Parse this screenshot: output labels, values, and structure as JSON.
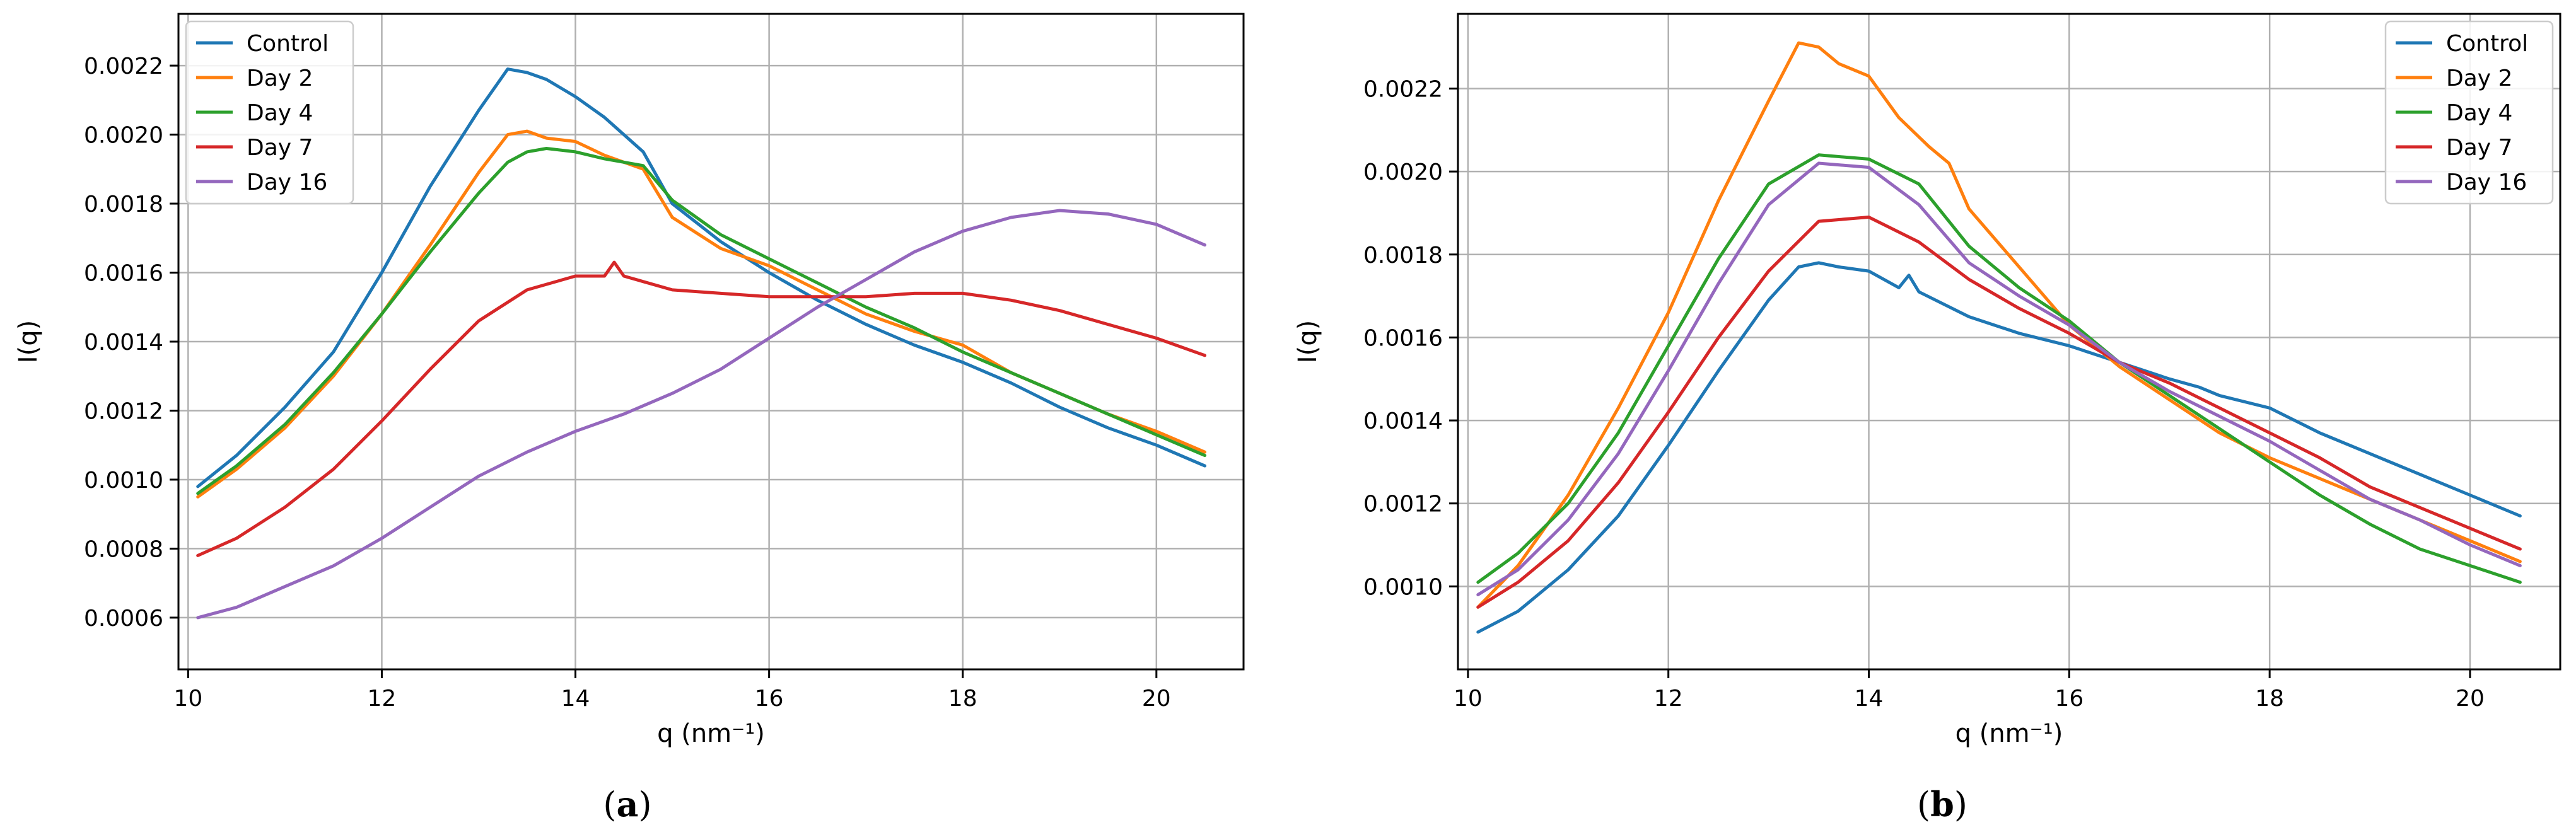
{
  "figure": {
    "panels": [
      {
        "caption_open": "(",
        "caption_letter": "a",
        "caption_close": ")"
      },
      {
        "caption_open": "(",
        "caption_letter": "b",
        "caption_close": ")"
      }
    ]
  },
  "chart_data": [
    {
      "type": "line",
      "xlabel": "q (nm⁻¹)",
      "ylabel": "I(q)",
      "xlim": [
        9.9,
        20.9
      ],
      "ylim": [
        0.00045,
        0.00235
      ],
      "xticks": [
        10,
        12,
        14,
        16,
        18,
        20
      ],
      "xtick_labels": [
        "10",
        "12",
        "14",
        "16",
        "18",
        "20"
      ],
      "yticks": [
        0.0006,
        0.0008,
        0.001,
        0.0012,
        0.0014,
        0.0016,
        0.0018,
        0.002,
        0.0022
      ],
      "ytick_labels": [
        "0.0006",
        "0.0008",
        "0.0010",
        "0.0012",
        "0.0014",
        "0.0016",
        "0.0018",
        "0.0020",
        "0.0022"
      ],
      "grid": true,
      "legend_position": "upper left",
      "series": [
        {
          "name": "Control",
          "color": "#1f77b4",
          "x": [
            10.1,
            10.5,
            11.0,
            11.5,
            12.0,
            12.5,
            13.0,
            13.3,
            13.5,
            13.7,
            14.0,
            14.3,
            14.7,
            15.0,
            15.5,
            16.0,
            16.5,
            17.0,
            17.5,
            18.0,
            18.5,
            19.0,
            19.5,
            20.0,
            20.5
          ],
          "y": [
            0.00098,
            0.00107,
            0.00121,
            0.00137,
            0.0016,
            0.00185,
            0.00207,
            0.00219,
            0.00218,
            0.00216,
            0.00211,
            0.00205,
            0.00195,
            0.0018,
            0.00169,
            0.0016,
            0.00152,
            0.00145,
            0.00139,
            0.00134,
            0.00128,
            0.00121,
            0.00115,
            0.0011,
            0.00104
          ]
        },
        {
          "name": "Day 2",
          "color": "#ff7f0e",
          "x": [
            10.1,
            10.5,
            11.0,
            11.5,
            12.0,
            12.5,
            13.0,
            13.3,
            13.5,
            13.7,
            14.0,
            14.3,
            14.7,
            15.0,
            15.5,
            16.0,
            16.5,
            17.0,
            17.5,
            18.0,
            18.5,
            19.0,
            19.5,
            20.0,
            20.5
          ],
          "y": [
            0.00095,
            0.00103,
            0.00115,
            0.0013,
            0.00148,
            0.00168,
            0.00189,
            0.002,
            0.00201,
            0.00199,
            0.00198,
            0.00194,
            0.0019,
            0.00176,
            0.00167,
            0.00162,
            0.00155,
            0.00148,
            0.00143,
            0.00139,
            0.00131,
            0.00125,
            0.00119,
            0.00114,
            0.00108
          ]
        },
        {
          "name": "Day 4",
          "color": "#2ca02c",
          "x": [
            10.1,
            10.5,
            11.0,
            11.5,
            12.0,
            12.5,
            13.0,
            13.3,
            13.5,
            13.7,
            14.0,
            14.3,
            14.7,
            15.0,
            15.5,
            16.0,
            16.5,
            17.0,
            17.5,
            18.0,
            18.5,
            19.0,
            19.5,
            20.0,
            20.5
          ],
          "y": [
            0.00096,
            0.00104,
            0.00116,
            0.00131,
            0.00148,
            0.00166,
            0.00183,
            0.00192,
            0.00195,
            0.00196,
            0.00195,
            0.00193,
            0.00191,
            0.00181,
            0.00171,
            0.00164,
            0.00157,
            0.0015,
            0.00144,
            0.00137,
            0.00131,
            0.00125,
            0.00119,
            0.00113,
            0.00107
          ]
        },
        {
          "name": "Day 7",
          "color": "#d62728",
          "x": [
            10.1,
            10.5,
            11.0,
            11.5,
            12.0,
            12.5,
            13.0,
            13.5,
            14.0,
            14.3,
            14.4,
            14.5,
            15.0,
            15.5,
            16.0,
            16.5,
            17.0,
            17.5,
            18.0,
            18.5,
            19.0,
            19.5,
            20.0,
            20.5
          ],
          "y": [
            0.00078,
            0.00083,
            0.00092,
            0.00103,
            0.00117,
            0.00132,
            0.00146,
            0.00155,
            0.00159,
            0.00159,
            0.00163,
            0.00159,
            0.00155,
            0.00154,
            0.00153,
            0.00153,
            0.00153,
            0.00154,
            0.00154,
            0.00152,
            0.00149,
            0.00145,
            0.00141,
            0.00136
          ]
        },
        {
          "name": "Day 16",
          "color": "#9467bd",
          "x": [
            10.1,
            10.5,
            11.0,
            11.5,
            12.0,
            12.5,
            13.0,
            13.5,
            14.0,
            14.5,
            15.0,
            15.5,
            16.0,
            16.5,
            17.0,
            17.5,
            18.0,
            18.5,
            19.0,
            19.5,
            20.0,
            20.5
          ],
          "y": [
            0.0006,
            0.00063,
            0.00069,
            0.00075,
            0.00083,
            0.00092,
            0.00101,
            0.00108,
            0.00114,
            0.00119,
            0.00125,
            0.00132,
            0.00141,
            0.0015,
            0.00158,
            0.00166,
            0.00172,
            0.00176,
            0.00178,
            0.00177,
            0.00174,
            0.00168
          ]
        }
      ]
    },
    {
      "type": "line",
      "xlabel": "q (nm⁻¹)",
      "ylabel": "I(q)",
      "xlim": [
        9.9,
        20.9
      ],
      "ylim": [
        0.0008,
        0.00238
      ],
      "xticks": [
        10,
        12,
        14,
        16,
        18,
        20
      ],
      "xtick_labels": [
        "10",
        "12",
        "14",
        "16",
        "18",
        "20"
      ],
      "yticks": [
        0.001,
        0.0012,
        0.0014,
        0.0016,
        0.0018,
        0.002,
        0.0022
      ],
      "ytick_labels": [
        "0.0010",
        "0.0012",
        "0.0014",
        "0.0016",
        "0.0018",
        "0.0020",
        "0.0022"
      ],
      "grid": true,
      "legend_position": "upper right",
      "series": [
        {
          "name": "Control",
          "color": "#1f77b4",
          "x": [
            10.1,
            10.5,
            11.0,
            11.5,
            12.0,
            12.5,
            13.0,
            13.3,
            13.5,
            13.7,
            14.0,
            14.3,
            14.4,
            14.5,
            15.0,
            15.5,
            16.0,
            16.5,
            17.0,
            17.3,
            17.5,
            18.0,
            18.5,
            19.0,
            19.5,
            20.0,
            20.5
          ],
          "y": [
            0.00089,
            0.00094,
            0.00104,
            0.00117,
            0.00134,
            0.00152,
            0.00169,
            0.00177,
            0.00178,
            0.00177,
            0.00176,
            0.00172,
            0.00175,
            0.00171,
            0.00165,
            0.00161,
            0.00158,
            0.00154,
            0.0015,
            0.00148,
            0.00146,
            0.00143,
            0.00137,
            0.00132,
            0.00127,
            0.00122,
            0.00117
          ]
        },
        {
          "name": "Day 2",
          "color": "#ff7f0e",
          "x": [
            10.1,
            10.5,
            11.0,
            11.5,
            12.0,
            12.5,
            13.0,
            13.3,
            13.5,
            13.7,
            14.0,
            14.3,
            14.6,
            14.8,
            15.0,
            15.5,
            16.0,
            16.5,
            17.0,
            17.5,
            18.0,
            18.5,
            19.0,
            19.5,
            20.0,
            20.5
          ],
          "y": [
            0.00095,
            0.00105,
            0.00122,
            0.00143,
            0.00166,
            0.00193,
            0.00217,
            0.00231,
            0.0023,
            0.00226,
            0.00223,
            0.00213,
            0.00206,
            0.00202,
            0.00191,
            0.00177,
            0.00163,
            0.00153,
            0.00145,
            0.00137,
            0.00131,
            0.00126,
            0.00121,
            0.00116,
            0.00111,
            0.00106
          ]
        },
        {
          "name": "Day 4",
          "color": "#2ca02c",
          "x": [
            10.1,
            10.5,
            11.0,
            11.5,
            12.0,
            12.5,
            13.0,
            13.5,
            14.0,
            14.5,
            15.0,
            15.5,
            16.0,
            16.5,
            17.0,
            17.5,
            18.0,
            18.5,
            19.0,
            19.5,
            20.0,
            20.5
          ],
          "y": [
            0.00101,
            0.00108,
            0.0012,
            0.00137,
            0.00158,
            0.00179,
            0.00197,
            0.00204,
            0.00203,
            0.00197,
            0.00182,
            0.00172,
            0.00164,
            0.00154,
            0.00146,
            0.00138,
            0.0013,
            0.00122,
            0.00115,
            0.00109,
            0.00105,
            0.00101
          ]
        },
        {
          "name": "Day 7",
          "color": "#d62728",
          "x": [
            10.1,
            10.5,
            11.0,
            11.5,
            12.0,
            12.5,
            13.0,
            13.5,
            14.0,
            14.5,
            15.0,
            15.5,
            16.0,
            16.5,
            17.0,
            17.5,
            18.0,
            18.5,
            19.0,
            19.5,
            20.0,
            20.5
          ],
          "y": [
            0.00095,
            0.00101,
            0.00111,
            0.00125,
            0.00142,
            0.0016,
            0.00176,
            0.00188,
            0.00189,
            0.00183,
            0.00174,
            0.00167,
            0.00161,
            0.00154,
            0.00149,
            0.00143,
            0.00137,
            0.00131,
            0.00124,
            0.00119,
            0.00114,
            0.00109
          ]
        },
        {
          "name": "Day 16",
          "color": "#9467bd",
          "x": [
            10.1,
            10.5,
            11.0,
            11.5,
            12.0,
            12.5,
            13.0,
            13.5,
            14.0,
            14.5,
            15.0,
            15.5,
            16.0,
            16.5,
            17.0,
            17.5,
            18.0,
            18.5,
            19.0,
            19.5,
            20.0,
            20.5
          ],
          "y": [
            0.00098,
            0.00104,
            0.00116,
            0.00132,
            0.00152,
            0.00173,
            0.00192,
            0.00202,
            0.00201,
            0.00192,
            0.00178,
            0.0017,
            0.00163,
            0.00154,
            0.00147,
            0.00141,
            0.00135,
            0.00128,
            0.00121,
            0.00116,
            0.0011,
            0.00105
          ]
        }
      ]
    }
  ]
}
